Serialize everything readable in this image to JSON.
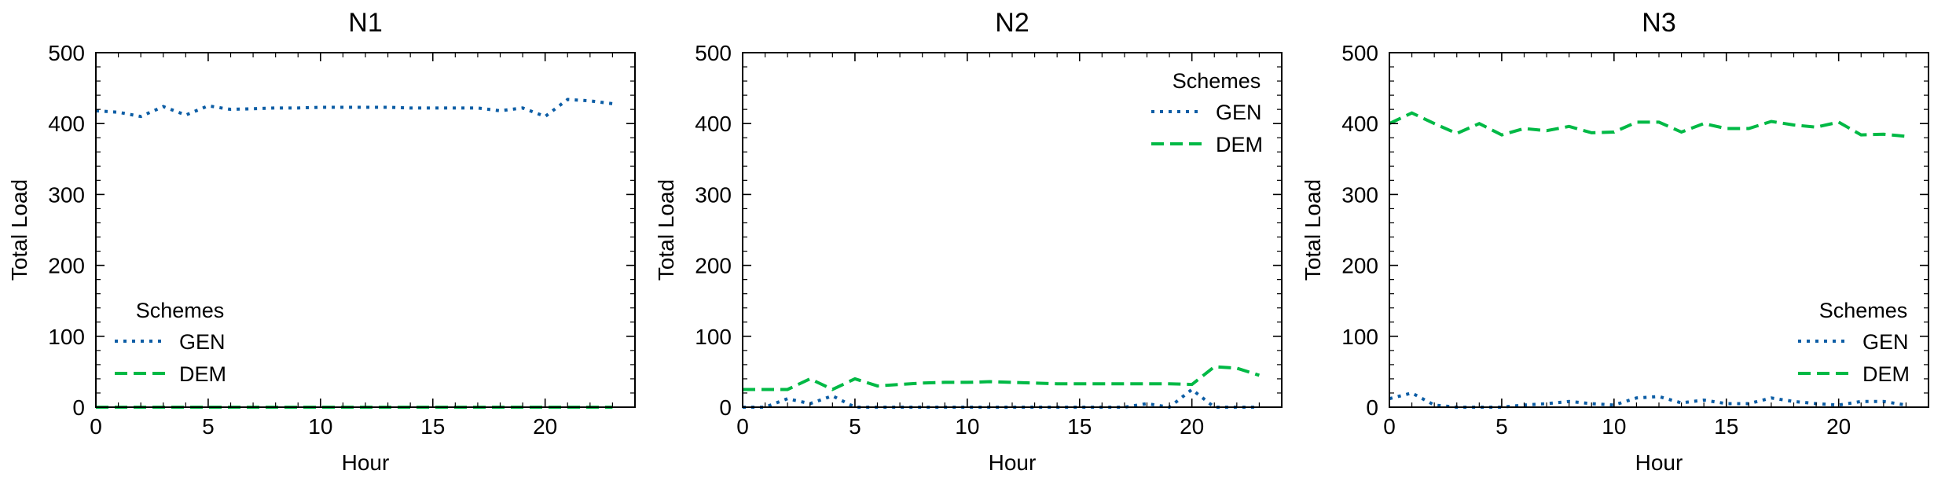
{
  "colors": {
    "GEN": "#0C5DA5",
    "DEM": "#00B945"
  },
  "chart_data": [
    {
      "type": "line",
      "title": "N1",
      "xlabel": "Hour",
      "ylabel": "Total Load",
      "xlim": [
        0,
        24
      ],
      "ylim": [
        0,
        500
      ],
      "xticks": [
        0,
        5,
        10,
        15,
        20
      ],
      "yticks": [
        0,
        100,
        200,
        300,
        400,
        500
      ],
      "legend_title": "Schemes",
      "legend_position": "lower-left",
      "x": [
        0,
        1,
        2,
        3,
        4,
        5,
        6,
        7,
        8,
        9,
        10,
        11,
        12,
        13,
        14,
        15,
        16,
        17,
        18,
        19,
        20,
        21,
        22,
        23
      ],
      "series": [
        {
          "name": "GEN",
          "style": "dotted",
          "values": [
            418,
            416,
            410,
            424,
            412,
            425,
            420,
            421,
            422,
            422,
            423,
            423,
            423,
            423,
            422,
            422,
            422,
            422,
            418,
            422,
            410,
            434,
            432,
            428
          ]
        },
        {
          "name": "DEM",
          "style": "dashed",
          "values": [
            0,
            0,
            0,
            0,
            0,
            0,
            0,
            0,
            0,
            0,
            0,
            0,
            0,
            0,
            0,
            0,
            0,
            0,
            0,
            0,
            0,
            0,
            0,
            0
          ]
        }
      ]
    },
    {
      "type": "line",
      "title": "N2",
      "xlabel": "Hour",
      "ylabel": "Total Load",
      "xlim": [
        0,
        24
      ],
      "ylim": [
        0,
        500
      ],
      "xticks": [
        0,
        5,
        10,
        15,
        20
      ],
      "yticks": [
        0,
        100,
        200,
        300,
        400,
        500
      ],
      "legend_title": "Schemes",
      "legend_position": "upper-right",
      "x": [
        0,
        1,
        2,
        3,
        4,
        5,
        6,
        7,
        8,
        9,
        10,
        11,
        12,
        13,
        14,
        15,
        16,
        17,
        18,
        19,
        20,
        21,
        22,
        23
      ],
      "series": [
        {
          "name": "GEN",
          "style": "dotted",
          "values": [
            0,
            0,
            12,
            5,
            16,
            0,
            0,
            0,
            0,
            0,
            0,
            0,
            0,
            0,
            0,
            0,
            0,
            0,
            5,
            0,
            25,
            0,
            0,
            0
          ]
        },
        {
          "name": "DEM",
          "style": "dashed",
          "values": [
            25,
            25,
            25,
            40,
            25,
            40,
            30,
            32,
            34,
            35,
            35,
            36,
            35,
            34,
            33,
            33,
            33,
            33,
            33,
            33,
            32,
            57,
            55,
            45
          ]
        }
      ]
    },
    {
      "type": "line",
      "title": "N3",
      "xlabel": "Hour",
      "ylabel": "Total Load",
      "xlim": [
        0,
        24
      ],
      "ylim": [
        0,
        500
      ],
      "xticks": [
        0,
        5,
        10,
        15,
        20
      ],
      "yticks": [
        0,
        100,
        200,
        300,
        400,
        500
      ],
      "legend_title": "Schemes",
      "legend_position": "lower-right",
      "x": [
        0,
        1,
        2,
        3,
        4,
        5,
        6,
        7,
        8,
        9,
        10,
        11,
        12,
        13,
        14,
        15,
        16,
        17,
        18,
        19,
        20,
        21,
        22,
        23
      ],
      "series": [
        {
          "name": "GEN",
          "style": "dotted",
          "values": [
            12,
            20,
            3,
            0,
            0,
            0,
            3,
            5,
            8,
            5,
            3,
            13,
            15,
            6,
            10,
            5,
            5,
            13,
            8,
            5,
            3,
            8,
            8,
            3
          ]
        },
        {
          "name": "DEM",
          "style": "dashed",
          "values": [
            400,
            415,
            400,
            386,
            400,
            384,
            393,
            390,
            396,
            387,
            388,
            402,
            402,
            388,
            400,
            393,
            393,
            403,
            398,
            395,
            402,
            384,
            385,
            382
          ]
        }
      ]
    }
  ]
}
